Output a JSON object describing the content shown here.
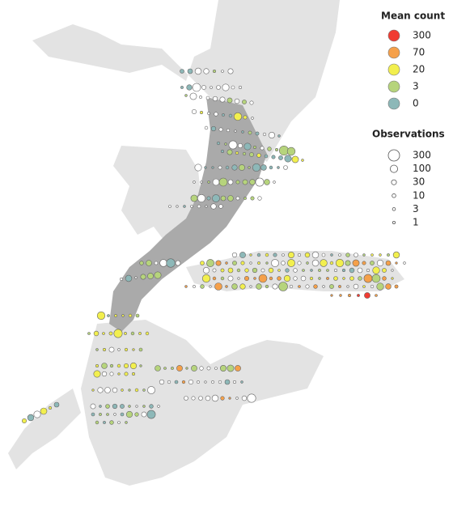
{
  "legend": {
    "color": {
      "title": "Mean count",
      "items": [
        {
          "label": 300,
          "color": "#f03b32"
        },
        {
          "label": 70,
          "color": "#f5a04a"
        },
        {
          "label": 20,
          "color": "#f2ef4e"
        },
        {
          "label": 3,
          "color": "#b6d47c"
        },
        {
          "label": 0,
          "color": "#8db8b8"
        }
      ]
    },
    "size": {
      "title": "Observations",
      "items": [
        300,
        100,
        30,
        10,
        3,
        1
      ]
    }
  }
}
